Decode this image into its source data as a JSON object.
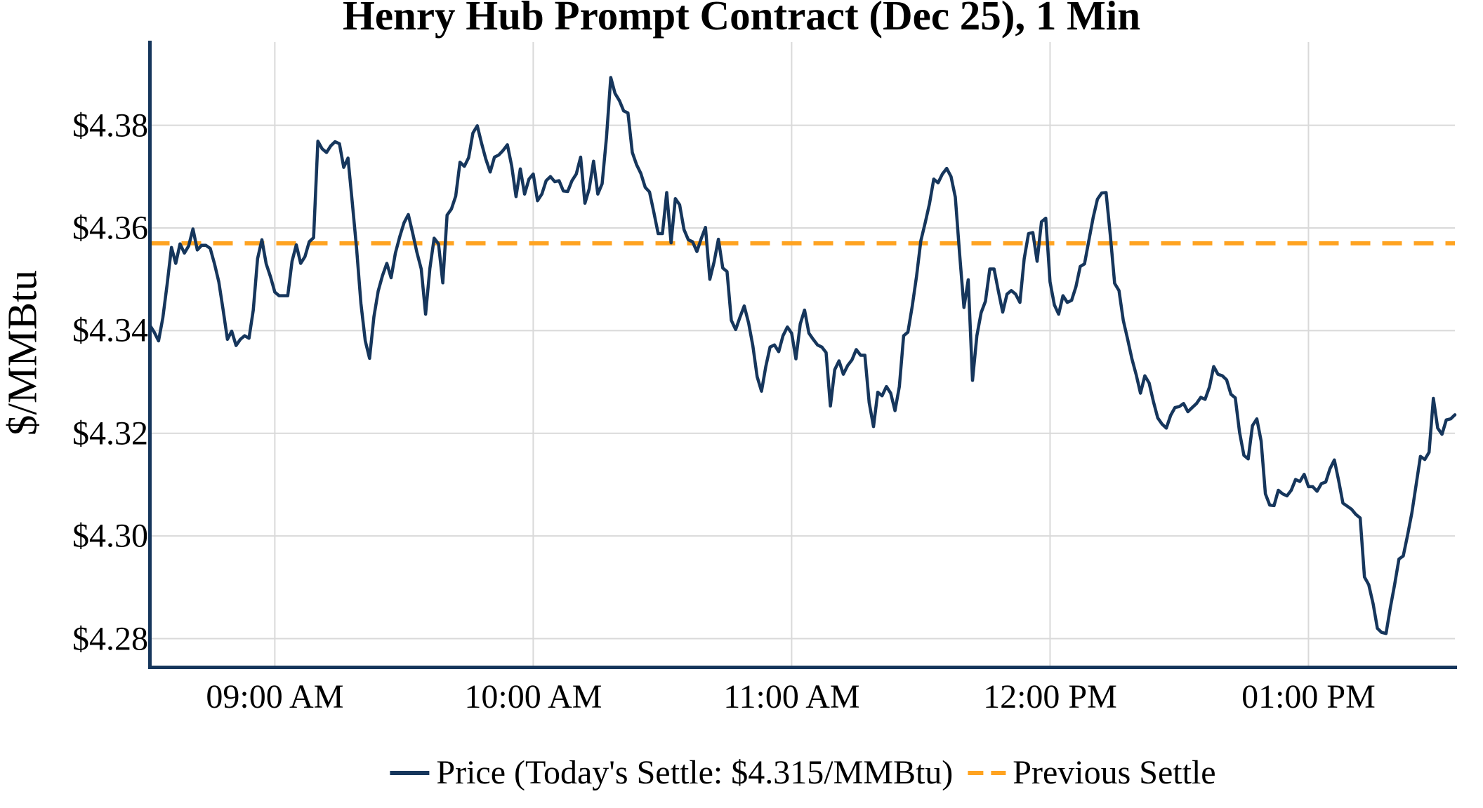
{
  "chart_data": {
    "type": "line",
    "title": "Henry Hub Prompt Contract (Dec 25), 1 Min",
    "xlabel": "",
    "ylabel": "$/MMBtu",
    "grid": true,
    "legend_position": "bottom-center",
    "ylim": [
      4.2744,
      4.3962
    ],
    "y_ticks": [
      {
        "label": "$4.38",
        "value": 4.38
      },
      {
        "label": "$4.36",
        "value": 4.36
      },
      {
        "label": "$4.34",
        "value": 4.34
      },
      {
        "label": "$4.32",
        "value": 4.32
      },
      {
        "label": "$4.30",
        "value": 4.3
      },
      {
        "label": "$4.28",
        "value": 4.28
      }
    ],
    "x_ticks": [
      {
        "label": "09:00 AM",
        "minute": 29
      },
      {
        "label": "10:00 AM",
        "minute": 89
      },
      {
        "label": "11:00 AM",
        "minute": 149
      },
      {
        "label": "12:00 PM",
        "minute": 209
      },
      {
        "label": "01:00 PM",
        "minute": 269
      }
    ],
    "x_start": "08:31 AM",
    "x_end": "01:34 PM",
    "interval_min": 1,
    "today_settle": "$4.315/MMBtu",
    "series": [
      {
        "name": "Price (Today's Settle: $4.315/MMBtu)",
        "type": "line",
        "color": "#16365C",
        "values": [
          4.341,
          4.3397,
          4.338,
          4.3425,
          4.349,
          4.3562,
          4.3531,
          4.3569,
          4.3551,
          4.3565,
          4.3598,
          4.3557,
          4.3566,
          4.3566,
          4.356,
          4.353,
          4.3495,
          4.344,
          4.3383,
          4.3399,
          4.3371,
          4.3383,
          4.339,
          4.3385,
          4.344,
          4.354,
          4.3577,
          4.353,
          4.3505,
          4.3475,
          4.3468,
          4.3468,
          4.3468,
          4.3535,
          4.3567,
          4.3531,
          4.3544,
          4.3573,
          4.3581,
          4.3769,
          4.3754,
          4.3747,
          4.376,
          4.3768,
          4.3764,
          4.3718,
          4.3736,
          4.3648,
          4.3559,
          4.3453,
          4.338,
          4.3346,
          4.3427,
          4.3477,
          4.3507,
          4.3531,
          4.3503,
          4.3551,
          4.3583,
          4.361,
          4.3626,
          4.359,
          4.3552,
          4.352,
          4.3432,
          4.3521,
          4.358,
          4.3569,
          4.3493,
          4.3625,
          4.3637,
          4.3662,
          4.3728,
          4.372,
          4.3737,
          4.3785,
          4.3799,
          4.3765,
          4.3734,
          4.3709,
          4.3738,
          4.3742,
          4.3751,
          4.3762,
          4.3721,
          4.3661,
          4.3715,
          4.3666,
          4.3695,
          4.3705,
          4.3653,
          4.3666,
          4.3692,
          4.37,
          4.369,
          4.3692,
          4.3672,
          4.3671,
          4.3692,
          4.3705,
          4.3738,
          4.3648,
          4.3676,
          4.373,
          4.3666,
          4.3686,
          4.3776,
          4.3893,
          4.3862,
          4.3848,
          4.3828,
          4.3824,
          4.3747,
          4.3723,
          4.3706,
          4.3679,
          4.367,
          4.3631,
          4.3589,
          4.3589,
          4.3669,
          4.3571,
          4.3657,
          4.3645,
          4.3597,
          4.3577,
          4.3573,
          4.3554,
          4.3579,
          4.3601,
          4.35,
          4.3534,
          4.3578,
          4.3522,
          4.3515,
          4.342,
          4.3402,
          4.3426,
          4.3448,
          4.3415,
          4.337,
          4.331,
          4.3282,
          4.333,
          4.3368,
          4.3372,
          4.3359,
          4.339,
          4.3407,
          4.3395,
          4.3345,
          4.3413,
          4.344,
          4.3395,
          4.3383,
          4.3372,
          4.3368,
          4.3357,
          4.3253,
          4.3324,
          4.3341,
          4.3315,
          4.3332,
          4.3343,
          4.3363,
          4.3352,
          4.3352,
          4.326,
          4.3213,
          4.328,
          4.3273,
          4.3291,
          4.3278,
          4.3244,
          4.3291,
          4.339,
          4.3397,
          4.3448,
          4.3506,
          4.3575,
          4.361,
          4.3647,
          4.3695,
          4.3688,
          4.3705,
          4.3716,
          4.37,
          4.366,
          4.355,
          4.3445,
          4.3499,
          4.3303,
          4.339,
          4.3435,
          4.3457,
          4.352,
          4.352,
          4.3477,
          4.3436,
          4.3471,
          4.3478,
          4.3471,
          4.3455,
          4.354,
          4.3589,
          4.3591,
          4.3535,
          4.3612,
          4.3619,
          4.3495,
          4.345,
          4.3432,
          4.3468,
          4.3455,
          4.3459,
          4.3485,
          4.3525,
          4.353,
          4.3575,
          4.362,
          4.3656,
          4.3668,
          4.3669,
          4.3585,
          4.3492,
          4.3478,
          4.342,
          4.3384,
          4.3345,
          4.3314,
          4.3278,
          4.3312,
          4.3298,
          4.3262,
          4.323,
          4.3218,
          4.321,
          4.3235,
          4.325,
          4.3252,
          4.3258,
          4.3242,
          4.325,
          4.3258,
          4.327,
          4.3266,
          4.329,
          4.333,
          4.3315,
          4.3312,
          4.3304,
          4.3276,
          4.3269,
          4.3202,
          4.3157,
          4.315,
          4.3215,
          4.3228,
          4.3185,
          4.3082,
          4.306,
          4.3059,
          4.3089,
          4.3082,
          4.3078,
          4.3089,
          4.311,
          4.3106,
          4.312,
          4.3096,
          4.3096,
          4.3087,
          4.3102,
          4.3105,
          4.3131,
          4.3148,
          4.3108,
          4.3064,
          4.3058,
          4.3052,
          4.3042,
          4.3035,
          4.292,
          4.2905,
          4.2868,
          4.282,
          4.2812,
          4.281,
          4.286,
          4.2905,
          4.2955,
          4.2961,
          4.3001,
          4.3045,
          4.31,
          4.3155,
          4.3149,
          4.3163,
          4.3268,
          4.321,
          4.3198,
          4.3226,
          4.3228,
          4.3236
        ]
      },
      {
        "name": "Previous Settle",
        "type": "horizontal-dashed-line",
        "color": "#FFA320",
        "value": 4.357
      }
    ]
  }
}
